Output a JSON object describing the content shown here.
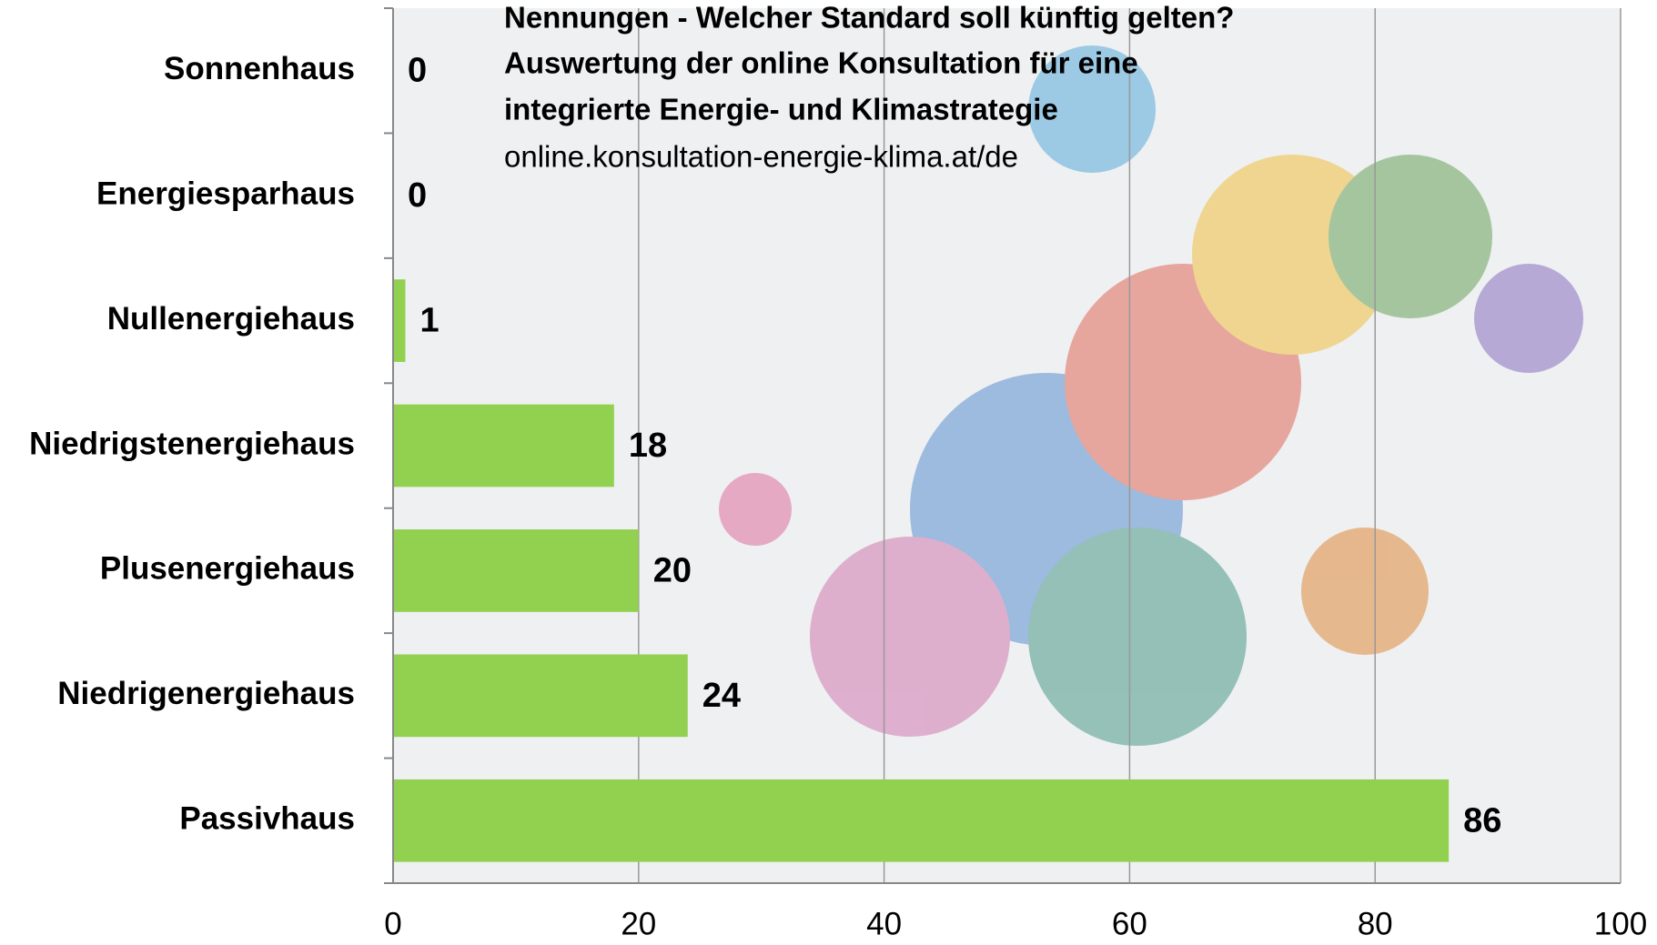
{
  "chart_data": {
    "type": "bar",
    "orientation": "horizontal",
    "title_lines": [
      "Nennungen - Welcher Standard soll künftig gelten?",
      "Auswertung der online Konsultation für eine",
      "integrierte Energie- und Klimastrategie"
    ],
    "source": "online.konsultation-energie-klima.at/de",
    "categories": [
      "Sonnenhaus",
      "Energiesparhaus",
      "Nullenergiehaus",
      "Niedrigstenergiehaus",
      "Plusenergiehaus",
      "Niedrigenergiehaus",
      "Passivhaus"
    ],
    "values": [
      0,
      0,
      1,
      18,
      20,
      24,
      86
    ],
    "color": "#92d050",
    "xlim": [
      0,
      100
    ],
    "xticks": [
      0,
      20,
      40,
      60,
      80,
      100
    ],
    "grid": true
  }
}
